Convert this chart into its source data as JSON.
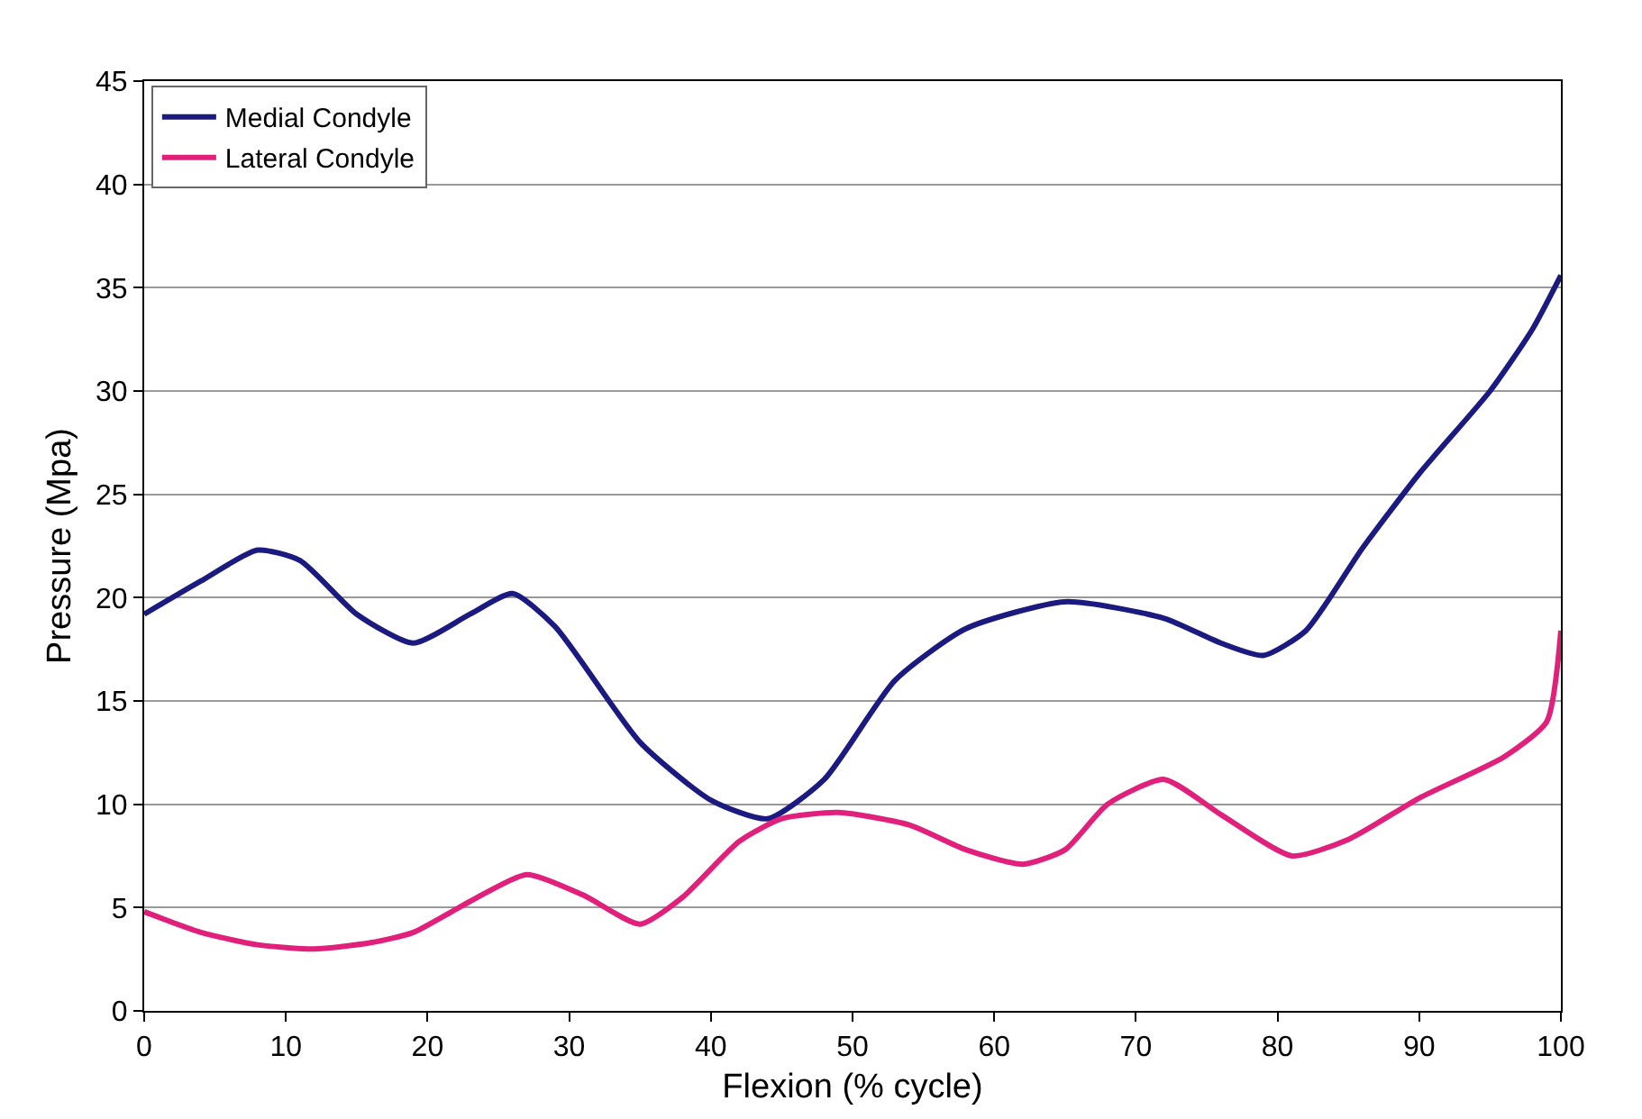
{
  "chart_data": {
    "type": "line",
    "xlabel": "Flexion (% cycle)",
    "ylabel": "Pressure (Mpa)",
    "xlim": [
      0,
      100
    ],
    "xticks": [
      0,
      10,
      20,
      30,
      40,
      50,
      60,
      70,
      80,
      90,
      100
    ],
    "ylim": [
      0,
      45
    ],
    "yticks": [
      0,
      5,
      10,
      15,
      20,
      25,
      30,
      35,
      40,
      45
    ],
    "grid": "y",
    "legend": "top left",
    "marker": "none",
    "line_style": "solid",
    "series": [
      {
        "name": "Medial Condyle",
        "color": "#1a1a80",
        "x": [
          0,
          4,
          8,
          11,
          15,
          19,
          23,
          26,
          29,
          35,
          40,
          44,
          48,
          53,
          58,
          65,
          72,
          76,
          79,
          82,
          86,
          90,
          95,
          98,
          100
        ],
        "values": [
          19.2,
          20.8,
          22.3,
          21.8,
          19.2,
          17.8,
          19.2,
          20.2,
          18.6,
          13,
          10.2,
          9.3,
          11.2,
          16,
          18.5,
          19.8,
          19,
          17.8,
          17.2,
          18.4,
          22.4,
          26,
          30,
          33,
          35.6
        ]
      },
      {
        "name": "Lateral Condyle",
        "color": "#e0207a",
        "x": [
          0,
          4,
          8,
          12,
          16,
          19,
          23,
          27,
          31,
          35,
          38,
          42,
          45,
          49,
          54,
          58,
          62,
          65,
          68,
          72,
          76,
          81,
          85,
          90,
          96,
          99,
          100
        ],
        "values": [
          4.8,
          3.8,
          3.2,
          3.0,
          3.3,
          3.8,
          5.3,
          6.6,
          5.6,
          4.2,
          5.5,
          8.2,
          9.3,
          9.6,
          9.0,
          7.8,
          7.1,
          7.8,
          10,
          11.2,
          9.5,
          7.5,
          8.3,
          10.3,
          12.3,
          14,
          18.4
        ]
      }
    ]
  }
}
